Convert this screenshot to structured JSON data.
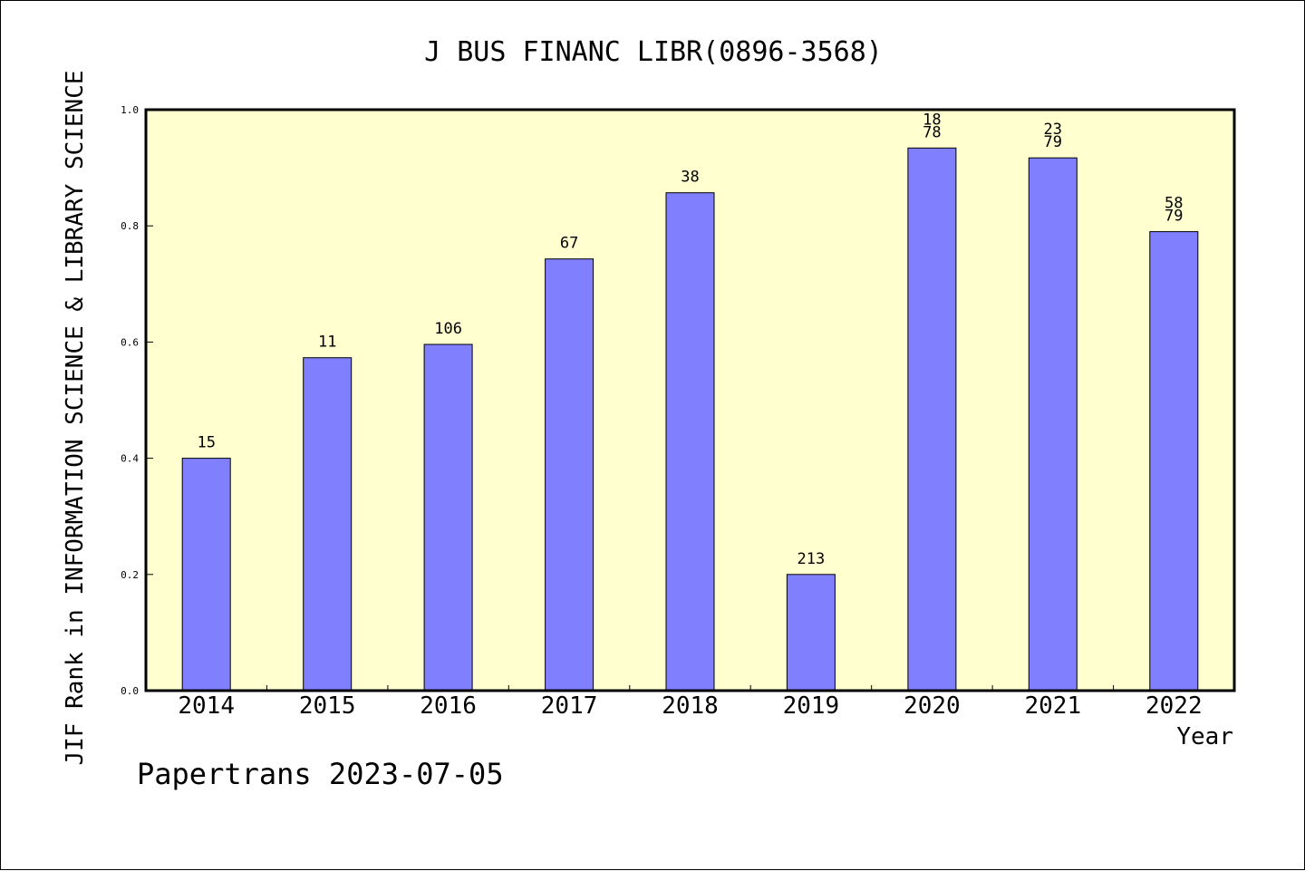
{
  "chart_data": {
    "type": "bar",
    "title": "J BUS FINANC LIBR(0896-3568)",
    "xlabel": "Year",
    "ylabel": "JIF Rank in INFORMATION SCIENCE & LIBRARY SCIENCE",
    "ylim": [
      0,
      1.0
    ],
    "yticks": [
      "0.0",
      "0.2",
      "0.4",
      "0.6",
      "0.8",
      "1.0"
    ],
    "categories": [
      "2014",
      "2015",
      "2016",
      "2017",
      "2018",
      "2019",
      "2020",
      "2021",
      "2022"
    ],
    "values": [
      0.4,
      0.573,
      0.596,
      0.743,
      0.857,
      0.2,
      0.934,
      0.917,
      0.79
    ],
    "bar_labels": [
      [
        "15"
      ],
      [
        "11"
      ],
      [
        "106"
      ],
      [
        "67"
      ],
      [
        "38"
      ],
      [
        "213"
      ],
      [
        "18",
        "78"
      ],
      [
        "23",
        "79"
      ],
      [
        "58",
        "79"
      ]
    ],
    "grid": false,
    "bar_color": "#8080ff",
    "plot_background": "#ffffd0"
  },
  "footer": "Papertrans 2023-07-05"
}
